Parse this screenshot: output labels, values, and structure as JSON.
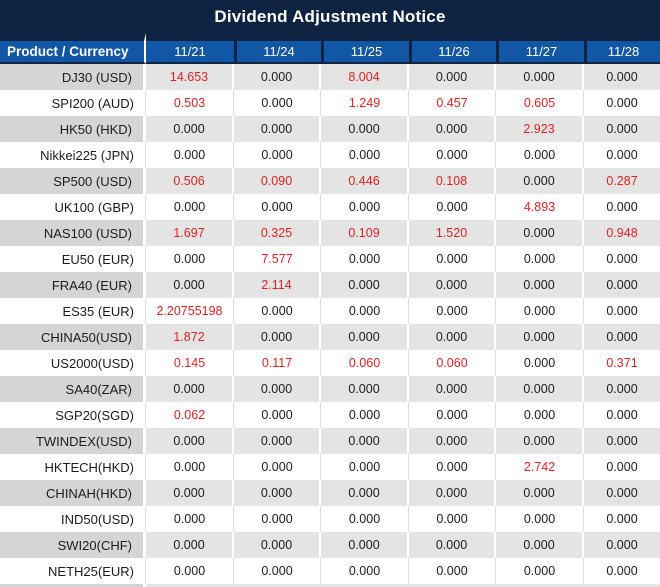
{
  "title": "Dividend Adjustment Notice",
  "colors": {
    "navy": "#0e2342",
    "header_blue": "#1157a6",
    "row_gray_product": "#d5d5d6",
    "row_gray_value": "#e4e4e5",
    "nonzero_red": "#e42222",
    "zero_black": "#1c1c1c"
  },
  "table": {
    "product_header": "Product / Currency",
    "dates": [
      "11/21",
      "11/24",
      "11/25",
      "11/26",
      "11/27",
      "11/28"
    ],
    "rows": [
      {
        "product": "DJ30 (USD)",
        "values": [
          "14.653",
          "0.000",
          "8.004",
          "0.000",
          "0.000",
          "0.000"
        ]
      },
      {
        "product": "SPI200 (AUD)",
        "values": [
          "0.503",
          "0.000",
          "1.249",
          "0.457",
          "0.605",
          "0.000"
        ]
      },
      {
        "product": "HK50 (HKD)",
        "values": [
          "0.000",
          "0.000",
          "0.000",
          "0.000",
          "2.923",
          "0.000"
        ]
      },
      {
        "product": "Nikkei225 (JPN)",
        "values": [
          "0.000",
          "0.000",
          "0.000",
          "0.000",
          "0.000",
          "0.000"
        ]
      },
      {
        "product": "SP500 (USD)",
        "values": [
          "0.506",
          "0.090",
          "0.446",
          "0.108",
          "0.000",
          "0.287"
        ]
      },
      {
        "product": "UK100 (GBP)",
        "values": [
          "0.000",
          "0.000",
          "0.000",
          "0.000",
          "4.893",
          "0.000"
        ]
      },
      {
        "product": "NAS100 (USD)",
        "values": [
          "1.697",
          "0.325",
          "0.109",
          "1.520",
          "0.000",
          "0.948"
        ]
      },
      {
        "product": "EU50 (EUR)",
        "values": [
          "0.000",
          "7.577",
          "0.000",
          "0.000",
          "0.000",
          "0.000"
        ]
      },
      {
        "product": "FRA40 (EUR)",
        "values": [
          "0.000",
          "2.114",
          "0.000",
          "0.000",
          "0.000",
          "0.000"
        ]
      },
      {
        "product": "ES35 (EUR)",
        "values": [
          "2.20755198",
          "0.000",
          "0.000",
          "0.000",
          "0.000",
          "0.000"
        ]
      },
      {
        "product": "CHINA50(USD)",
        "values": [
          "1.872",
          "0.000",
          "0.000",
          "0.000",
          "0.000",
          "0.000"
        ]
      },
      {
        "product": "US2000(USD)",
        "values": [
          "0.145",
          "0.117",
          "0.060",
          "0.060",
          "0.000",
          "0.371"
        ]
      },
      {
        "product": "SA40(ZAR)",
        "values": [
          "0.000",
          "0.000",
          "0.000",
          "0.000",
          "0.000",
          "0.000"
        ]
      },
      {
        "product": "SGP20(SGD)",
        "values": [
          "0.062",
          "0.000",
          "0.000",
          "0.000",
          "0.000",
          "0.000"
        ]
      },
      {
        "product": "TWINDEX(USD)",
        "values": [
          "0.000",
          "0.000",
          "0.000",
          "0.000",
          "0.000",
          "0.000"
        ]
      },
      {
        "product": "HKTECH(HKD)",
        "values": [
          "0.000",
          "0.000",
          "0.000",
          "0.000",
          "2.742",
          "0.000"
        ]
      },
      {
        "product": "CHINAH(HKD)",
        "values": [
          "0.000",
          "0.000",
          "0.000",
          "0.000",
          "0.000",
          "0.000"
        ]
      },
      {
        "product": "IND50(USD)",
        "values": [
          "0.000",
          "0.000",
          "0.000",
          "0.000",
          "0.000",
          "0.000"
        ]
      },
      {
        "product": "SWI20(CHF)",
        "values": [
          "0.000",
          "0.000",
          "0.000",
          "0.000",
          "0.000",
          "0.000"
        ]
      },
      {
        "product": "NETH25(EUR)",
        "values": [
          "0.000",
          "0.000",
          "0.000",
          "0.000",
          "0.000",
          "0.000"
        ]
      }
    ]
  }
}
